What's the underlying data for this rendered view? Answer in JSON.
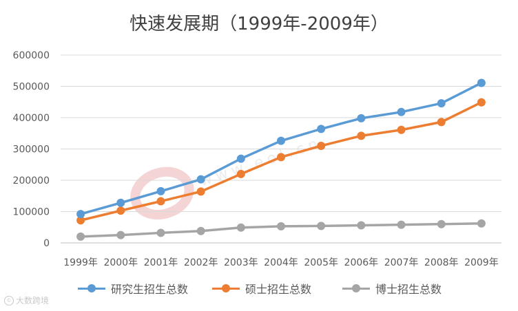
{
  "chart_data": {
    "type": "line",
    "title": "快速发展期（1999年-2009年）",
    "categories": [
      "1999年",
      "2000年",
      "2001年",
      "2002年",
      "2003年",
      "2004年",
      "2005年",
      "2006年",
      "2007年",
      "2008年",
      "2009年"
    ],
    "ylim": [
      0,
      600000
    ],
    "yticks": [
      0,
      100000,
      200000,
      300000,
      400000,
      500000,
      600000
    ],
    "ytick_labels": [
      "0",
      "100000",
      "200000",
      "300000",
      "400000",
      "500000",
      "600000"
    ],
    "grid": true,
    "legend": "bottom",
    "series": [
      {
        "name": "研究生招生总数",
        "color": "#5B9BD5",
        "values": [
          92000,
          128000,
          165000,
          203000,
          269000,
          326000,
          364000,
          398000,
          418000,
          446000,
          511000
        ]
      },
      {
        "name": "硕士招生总数",
        "color": "#ED7D31",
        "values": [
          72000,
          103000,
          133000,
          164000,
          220000,
          274000,
          310000,
          342000,
          361000,
          386000,
          449000
        ]
      },
      {
        "name": "博士招生总数",
        "color": "#A5A5A5",
        "values": [
          20000,
          25000,
          32000,
          38000,
          49000,
          53000,
          54000,
          56000,
          58000,
          60000,
          62000
        ]
      }
    ]
  },
  "watermark": {
    "center_text": "www.eol.cn",
    "corner_text": "大数跨境",
    "corner_icon": "camera-icon"
  }
}
